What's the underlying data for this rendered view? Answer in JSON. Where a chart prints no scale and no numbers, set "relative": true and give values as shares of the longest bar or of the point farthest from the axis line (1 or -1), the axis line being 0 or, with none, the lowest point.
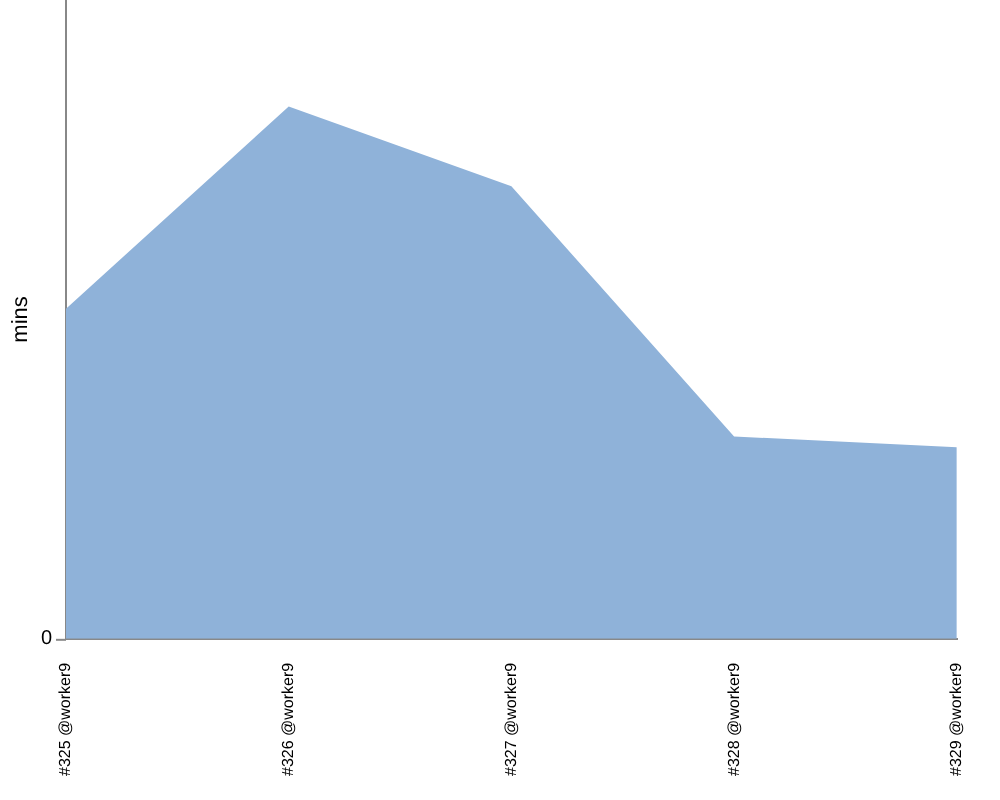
{
  "chart_data": {
    "type": "area",
    "ylabel": "mins",
    "relative": true,
    "categories": [
      "#325 @worker9",
      "#326 @worker9",
      "#327 @worker9",
      "#328 @worker9",
      "#329 @worker9"
    ],
    "series": [
      {
        "color": "#8fb2d9",
        "values": [
          0.62,
          1,
          0.85,
          0.38,
          0.36
        ]
      }
    ],
    "annotations": [
      "0"
    ],
    "grid": false,
    "legend": false
  }
}
